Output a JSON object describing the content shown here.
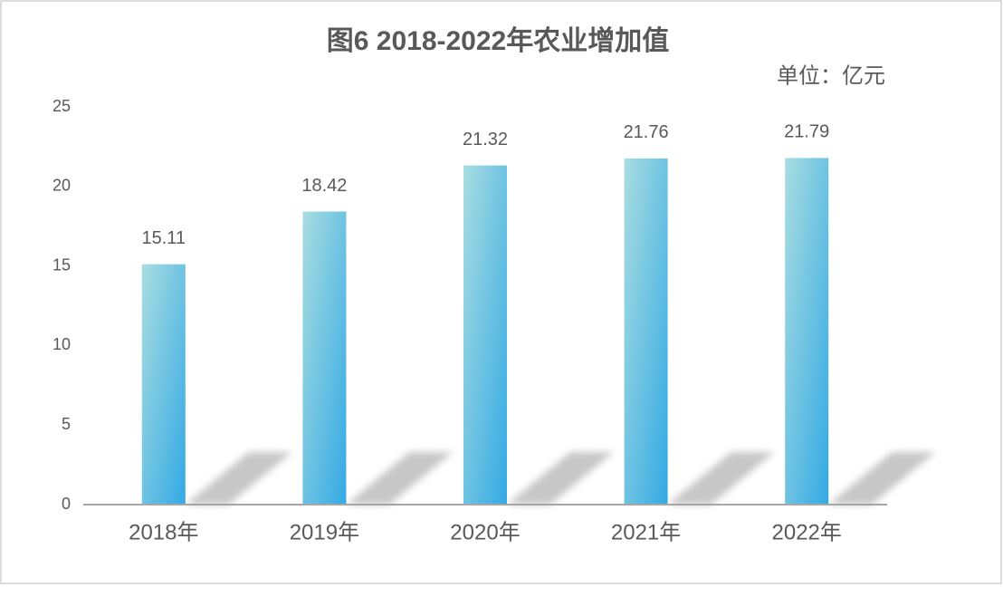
{
  "chart_data": {
    "type": "bar",
    "title": "图6  2018-2022年农业增加值",
    "unit": "单位：亿元",
    "categories": [
      "2018年",
      "2019年",
      "2020年",
      "2021年",
      "2022年"
    ],
    "values": [
      15.11,
      18.42,
      21.32,
      21.76,
      21.79
    ],
    "color": [
      "#a9dde1",
      "#33a9e4"
    ],
    "ylim": [
      0,
      25
    ],
    "yticks": [
      0,
      5,
      10,
      15,
      20,
      25
    ],
    "grid": false
  }
}
